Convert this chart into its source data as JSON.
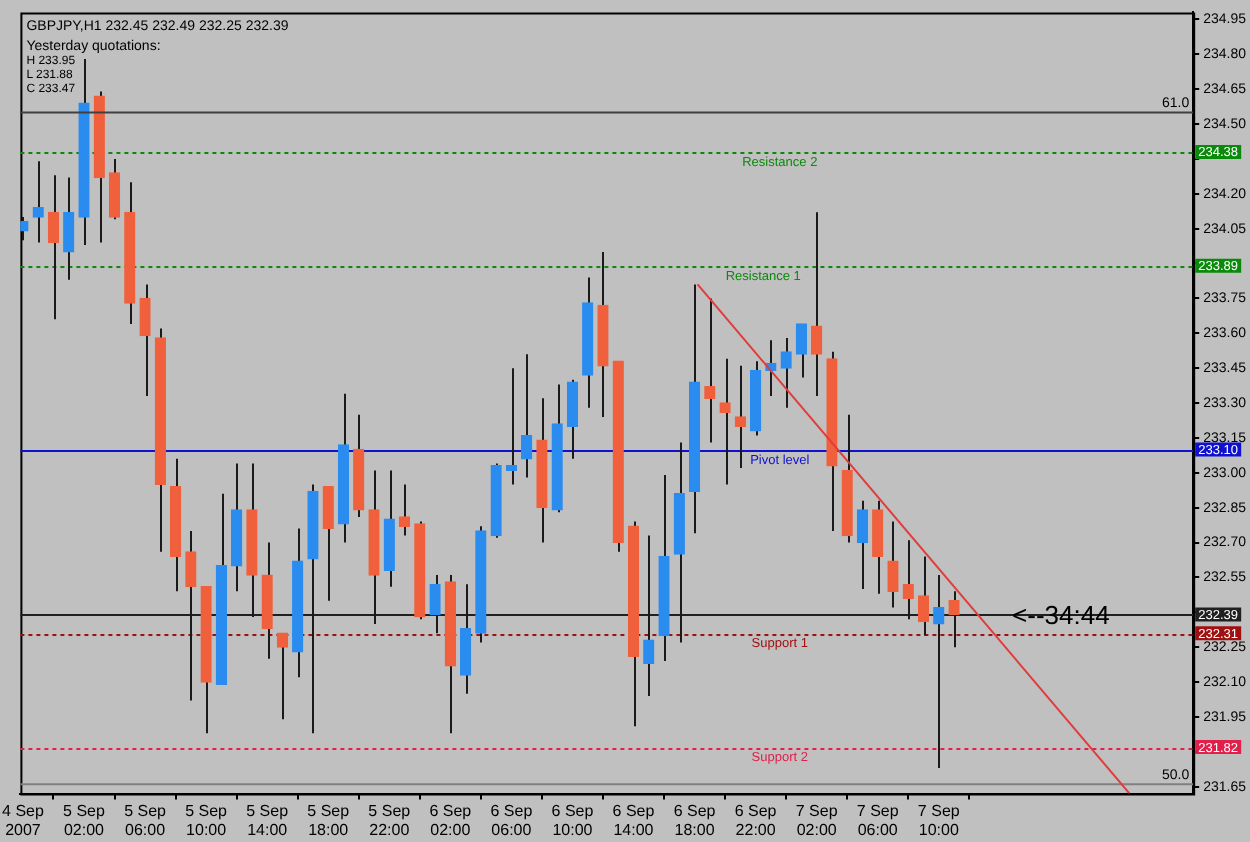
{
  "chart_data": {
    "type": "candlestick",
    "title": "GBPJPY,H1 232.45 232.49 232.25 232.39",
    "annotations": [
      "Yesterday quotations:",
      "H 233.95",
      "L 231.88",
      "C 233.47",
      {
        "text": "<--34:44",
        "x": "2007-09-07T18:00",
        "y": 232.39
      },
      {
        "text": "Resistance 2",
        "x": "2007-09-06T23:35",
        "y": 234.38
      },
      {
        "text": "Resistance 1",
        "x": "2007-09-06T22:30",
        "y": 233.89
      },
      {
        "text": "Pivot level",
        "x": "2007-09-06T23:35",
        "y": 233.1
      },
      {
        "text": "Support 1",
        "x": "2007-09-06T23:35",
        "y": 232.31
      },
      {
        "text": "Support 2",
        "x": "2007-09-06T23:35",
        "y": 231.82
      }
    ],
    "x": [
      "2007-09-04T22:00",
      "2007-09-04T23:00",
      "2007-09-05T00:00",
      "2007-09-05T01:00",
      "2007-09-05T02:00",
      "2007-09-05T03:00",
      "2007-09-05T04:00",
      "2007-09-05T05:00",
      "2007-09-05T06:00",
      "2007-09-05T07:00",
      "2007-09-05T08:00",
      "2007-09-05T09:00",
      "2007-09-05T10:00",
      "2007-09-05T11:00",
      "2007-09-05T12:00",
      "2007-09-05T13:00",
      "2007-09-05T14:00",
      "2007-09-05T15:00",
      "2007-09-05T16:00",
      "2007-09-05T17:00",
      "2007-09-05T18:00",
      "2007-09-05T19:00",
      "2007-09-05T20:00",
      "2007-09-05T21:00",
      "2007-09-05T22:00",
      "2007-09-05T23:00",
      "2007-09-06T00:00",
      "2007-09-06T01:00",
      "2007-09-06T02:00",
      "2007-09-06T03:00",
      "2007-09-06T04:00",
      "2007-09-06T05:00",
      "2007-09-06T06:00",
      "2007-09-06T07:00",
      "2007-09-06T08:00",
      "2007-09-06T09:00",
      "2007-09-06T10:00",
      "2007-09-06T11:00",
      "2007-09-06T12:00",
      "2007-09-06T13:00",
      "2007-09-06T14:00",
      "2007-09-06T15:00",
      "2007-09-06T16:00",
      "2007-09-06T17:00",
      "2007-09-06T18:00",
      "2007-09-06T19:00",
      "2007-09-06T20:00",
      "2007-09-06T21:00",
      "2007-09-06T22:00",
      "2007-09-06T23:00",
      "2007-09-07T00:00",
      "2007-09-07T01:00",
      "2007-09-07T02:00",
      "2007-09-07T03:00",
      "2007-09-07T04:00",
      "2007-09-07T05:00",
      "2007-09-07T06:00",
      "2007-09-07T07:00",
      "2007-09-07T08:00",
      "2007-09-07T09:00",
      "2007-09-07T10:00",
      "2007-09-07T11:00"
    ],
    "ohlc": [
      [
        234.04,
        234.1,
        234.0,
        234.08
      ],
      [
        234.1,
        234.34,
        233.99,
        234.14
      ],
      [
        234.12,
        234.28,
        233.66,
        233.99
      ],
      [
        233.95,
        234.27,
        233.83,
        234.12
      ],
      [
        234.1,
        234.78,
        233.98,
        234.59
      ],
      [
        234.62,
        234.64,
        233.99,
        234.27
      ],
      [
        234.29,
        234.35,
        234.09,
        234.1
      ],
      [
        234.12,
        234.25,
        233.64,
        233.73
      ],
      [
        233.75,
        233.81,
        233.33,
        233.59
      ],
      [
        233.58,
        233.62,
        232.66,
        232.95
      ],
      [
        232.94,
        233.06,
        232.49,
        232.64
      ],
      [
        232.66,
        232.75,
        232.02,
        232.51
      ],
      [
        232.51,
        232.51,
        231.88,
        232.1
      ],
      [
        232.09,
        232.91,
        232.09,
        232.6
      ],
      [
        232.6,
        233.04,
        232.49,
        232.84
      ],
      [
        232.84,
        233.04,
        232.38,
        232.56
      ],
      [
        232.56,
        232.7,
        232.2,
        232.33
      ],
      [
        232.31,
        232.31,
        231.94,
        232.25
      ],
      [
        232.23,
        232.76,
        232.12,
        232.62
      ],
      [
        232.63,
        232.95,
        231.88,
        232.92
      ],
      [
        232.94,
        232.94,
        232.45,
        232.76
      ],
      [
        232.78,
        233.34,
        232.7,
        233.12
      ],
      [
        233.1,
        233.25,
        232.81,
        232.84
      ],
      [
        232.84,
        233.01,
        232.35,
        232.56
      ],
      [
        232.58,
        233.01,
        232.51,
        232.8
      ],
      [
        232.81,
        232.95,
        232.73,
        232.77
      ],
      [
        232.78,
        232.79,
        232.37,
        232.38
      ],
      [
        232.39,
        232.56,
        232.31,
        232.52
      ],
      [
        232.53,
        232.56,
        231.88,
        232.17
      ],
      [
        232.13,
        232.52,
        232.05,
        232.33
      ],
      [
        232.31,
        232.77,
        232.27,
        232.75
      ],
      [
        232.73,
        233.04,
        232.72,
        233.03
      ],
      [
        233.01,
        233.45,
        232.95,
        233.03
      ],
      [
        233.06,
        233.51,
        232.98,
        233.16
      ],
      [
        233.14,
        233.32,
        232.7,
        232.85
      ],
      [
        232.84,
        233.38,
        232.83,
        233.21
      ],
      [
        233.2,
        233.4,
        233.06,
        233.39
      ],
      [
        233.42,
        233.84,
        233.28,
        233.73
      ],
      [
        233.72,
        233.95,
        233.24,
        233.46
      ],
      [
        233.48,
        233.48,
        232.66,
        232.7
      ],
      [
        232.77,
        232.79,
        231.91,
        232.21
      ],
      [
        232.18,
        232.73,
        232.04,
        232.28
      ],
      [
        232.3,
        232.99,
        232.19,
        232.64
      ],
      [
        232.65,
        233.13,
        232.27,
        232.91
      ],
      [
        232.92,
        233.81,
        232.74,
        233.39
      ],
      [
        233.37,
        233.75,
        233.13,
        233.32
      ],
      [
        233.3,
        233.49,
        232.95,
        233.26
      ],
      [
        233.24,
        233.46,
        233.02,
        233.2
      ],
      [
        233.18,
        233.48,
        233.16,
        233.44
      ],
      [
        233.44,
        233.57,
        233.33,
        233.47
      ],
      [
        233.45,
        233.58,
        233.28,
        233.52
      ],
      [
        233.51,
        233.64,
        233.41,
        233.64
      ],
      [
        233.63,
        234.12,
        233.33,
        233.51
      ],
      [
        233.49,
        233.52,
        232.75,
        233.03
      ],
      [
        233.01,
        233.25,
        232.7,
        232.73
      ],
      [
        232.7,
        232.88,
        232.5,
        232.84
      ],
      [
        232.84,
        232.88,
        232.48,
        232.64
      ],
      [
        232.62,
        232.79,
        232.42,
        232.49
      ],
      [
        232.52,
        232.71,
        232.37,
        232.46
      ],
      [
        232.47,
        232.64,
        232.3,
        232.36
      ],
      [
        232.35,
        232.56,
        231.73,
        232.42
      ],
      [
        232.45,
        232.49,
        232.25,
        232.39
      ]
    ],
    "colors": [
      "#2b8cf0",
      "#2b8cf0",
      "#f0603c",
      "#2b8cf0",
      "#2b8cf0",
      "#f0603c",
      "#f0603c",
      "#f0603c",
      "#f0603c",
      "#f0603c",
      "#f0603c",
      "#f0603c",
      "#f0603c",
      "#2b8cf0",
      "#2b8cf0",
      "#f0603c",
      "#f0603c",
      "#f0603c",
      "#2b8cf0",
      "#2b8cf0",
      "#f0603c",
      "#2b8cf0",
      "#f0603c",
      "#f0603c",
      "#2b8cf0",
      "#f0603c",
      "#f0603c",
      "#2b8cf0",
      "#f0603c",
      "#2b8cf0",
      "#2b8cf0",
      "#2b8cf0",
      "#2b8cf0",
      "#2b8cf0",
      "#f0603c",
      "#2b8cf0",
      "#2b8cf0",
      "#2b8cf0",
      "#f0603c",
      "#f0603c",
      "#f0603c",
      "#2b8cf0",
      "#2b8cf0",
      "#2b8cf0",
      "#2b8cf0",
      "#f0603c",
      "#f0603c",
      "#f0603c",
      "#2b8cf0",
      "#2b8cf0",
      "#2b8cf0",
      "#2b8cf0",
      "#f0603c",
      "#f0603c",
      "#f0603c",
      "#2b8cf0",
      "#f0603c",
      "#f0603c",
      "#f0603c",
      "#f0603c",
      "#2b8cf0",
      "#f0603c"
    ],
    "series": [
      {
        "type": "line",
        "x": [
          "2007-09-06T18:12",
          "2007-09-07T22:30"
        ],
        "values": [
          233.81,
          231.62
        ],
        "color": "#e03c3c"
      },
      {
        "type": "line",
        "name": "61.0",
        "x": [
          "2007-09-04T21:50",
          "2007-09-08T02:40"
        ],
        "values": [
          234.55,
          234.55
        ],
        "color": "#404040"
      },
      {
        "type": "line",
        "name": "50.0",
        "x": [
          "2007-09-04T21:50",
          "2007-09-08T02:40"
        ],
        "values": [
          231.66,
          231.66
        ],
        "color": "#808080"
      }
    ],
    "ref_lines": [
      {
        "axis": "y",
        "value": 234.38,
        "label": "234.38",
        "color": "#0a8a0a",
        "line_style": "dotted"
      },
      {
        "axis": "y",
        "value": 233.89,
        "label": "233.89",
        "color": "#0a8a0a",
        "line_style": "dotted"
      },
      {
        "axis": "y",
        "value": 233.1,
        "label": "233.10",
        "color": "#1010d0",
        "line_style": "solid"
      },
      {
        "axis": "y",
        "value": 232.39,
        "label": "232.39",
        "color": "#202020",
        "line_style": "solid"
      },
      {
        "axis": "y",
        "value": 232.31,
        "label": "232.31",
        "color": "#a01010",
        "line_style": "dotted"
      },
      {
        "axis": "y",
        "value": 231.82,
        "label": "231.82",
        "color": "#e0204a",
        "line_style": "dotted"
      }
    ],
    "xlim": [
      "2007-09-04T21:50",
      "2007-09-08T02:40"
    ],
    "xticks": [
      {
        "value": "2007-09-04T22:00",
        "label": "4 Sep 2007"
      },
      {
        "value": "2007-09-05T02:00",
        "label": "5 Sep 02:00"
      },
      {
        "value": "2007-09-05T06:00",
        "label": "5 Sep 06:00"
      },
      {
        "value": "2007-09-05T10:00",
        "label": "5 Sep 10:00"
      },
      {
        "value": "2007-09-05T14:00",
        "label": "5 Sep 14:00"
      },
      {
        "value": "2007-09-05T18:00",
        "label": "5 Sep 18:00"
      },
      {
        "value": "2007-09-05T22:00",
        "label": "5 Sep 22:00"
      },
      {
        "value": "2007-09-06T02:00",
        "label": "6 Sep 02:00"
      },
      {
        "value": "2007-09-06T06:00",
        "label": "6 Sep 06:00"
      },
      {
        "value": "2007-09-06T10:00",
        "label": "6 Sep 10:00"
      },
      {
        "value": "2007-09-06T14:00",
        "label": "6 Sep 14:00"
      },
      {
        "value": "2007-09-06T18:00",
        "label": "6 Sep 18:00"
      },
      {
        "value": "2007-09-06T22:00",
        "label": "6 Sep 22:00"
      },
      {
        "value": "2007-09-07T02:00",
        "label": "7 Sep 02:00"
      },
      {
        "value": "2007-09-07T06:00",
        "label": "7 Sep 06:00"
      },
      {
        "value": "2007-09-07T10:00",
        "label": "7 Sep 10:00"
      }
    ],
    "ylim": [
      231.62,
      234.98
    ],
    "yticks": [
      {
        "value": 231.65,
        "label": "231.65"
      },
      {
        "value": 231.8,
        "label": null
      },
      {
        "value": 231.95,
        "label": "231.95"
      },
      {
        "value": 232.1,
        "label": "232.10"
      },
      {
        "value": 232.25,
        "label": "232.25"
      },
      {
        "value": 232.4,
        "label": null
      },
      {
        "value": 232.55,
        "label": "232.55"
      },
      {
        "value": 232.7,
        "label": "232.70"
      },
      {
        "value": 232.85,
        "label": "232.85"
      },
      {
        "value": 233.0,
        "label": "233.00"
      },
      {
        "value": 233.15,
        "label": "233.15"
      },
      {
        "value": 233.3,
        "label": "233.30"
      },
      {
        "value": 233.45,
        "label": "233.45"
      },
      {
        "value": 233.6,
        "label": "233.60"
      },
      {
        "value": 233.75,
        "label": "233.75"
      },
      {
        "value": 233.9,
        "label": null
      },
      {
        "value": 234.05,
        "label": "234.05"
      },
      {
        "value": 234.2,
        "label": "234.20"
      },
      {
        "value": 234.35,
        "label": null
      },
      {
        "value": 234.5,
        "label": "234.50"
      },
      {
        "value": 234.65,
        "label": "234.65"
      },
      {
        "value": 234.8,
        "label": "234.80"
      },
      {
        "value": 234.95,
        "label": "234.95"
      }
    ]
  }
}
